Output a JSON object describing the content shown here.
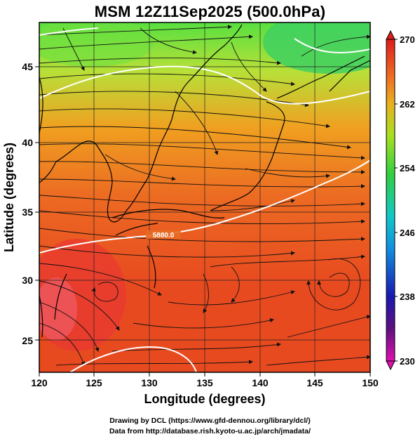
{
  "title": "MSM 12Z11Sep2025 (500.0hPa)",
  "x_axis": {
    "label": "Longitude (degrees)",
    "ticks": [
      "120",
      "125",
      "130",
      "135",
      "140",
      "145",
      "150"
    ],
    "range": [
      120,
      150
    ]
  },
  "y_axis": {
    "label": "Latitude  (degrees)",
    "ticks": [
      "25",
      "30",
      "35",
      "40",
      "45"
    ],
    "range": [
      22.4,
      47.6
    ]
  },
  "colorbar": {
    "ticks": [
      "270",
      "262",
      "254",
      "246",
      "238",
      "230"
    ],
    "range": [
      230,
      270
    ],
    "colors": [
      "#e010b0",
      "#1010a0",
      "#1050e0",
      "#10c0e0",
      "#20d060",
      "#40e020",
      "#a0e020",
      "#e0c020",
      "#f08020",
      "#e84020",
      "#e02020"
    ]
  },
  "contour_label": "5880.0",
  "credits": {
    "line1": "Drawing by DCL (https://www.gfd-dennou.org/library/dcl/)",
    "line2": "Data from http://database.rish.kyoto-u.ac.jp/arch/jmadata/"
  }
}
